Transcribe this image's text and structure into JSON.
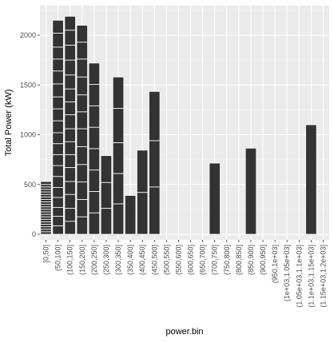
{
  "chart_data": {
    "type": "bar",
    "xlabel": "power.bin",
    "ylabel": "Total Power (kW)",
    "ylim": [
      0,
      2250
    ],
    "yticks": [
      0,
      500,
      1000,
      1500,
      2000
    ],
    "grid": true,
    "colors": {
      "panel": "#ebebeb",
      "grid_major": "#ffffff",
      "grid_minor": "#f5f5f5",
      "bar_fill": "#333333",
      "bar_segment_line": "#ffffff",
      "tick_text": "#4d4d4d"
    },
    "categories": [
      "[0,50]",
      "(50,100]",
      "(100,150]",
      "(150,200]",
      "(200,250]",
      "(250,300]",
      "(300,350]",
      "(350,400]",
      "(400,450]",
      "(450,500]",
      "(500,550]",
      "(550,600]",
      "(600,650]",
      "(650,700]",
      "(700,750]",
      "(750,800]",
      "(800,850]",
      "(850,900]",
      "(900,950]",
      "(950,1e+03]",
      "(1e+03,1.05e+03]",
      "(1.05e+03,1.1e+03]",
      "(1.1e+03,1.15e+03]",
      "(1.15e+03,1.2e+03]"
    ],
    "values": [
      530,
      2150,
      2190,
      2100,
      1720,
      790,
      1580,
      390,
      845,
      1435,
      0,
      0,
      0,
      0,
      715,
      0,
      0,
      865,
      0,
      0,
      0,
      0,
      1100,
      0
    ],
    "stack_segments": [
      [
        25,
        50,
        75,
        100,
        125,
        150,
        175,
        200,
        225,
        250,
        275,
        300,
        325,
        350,
        375,
        400,
        425,
        450,
        475,
        500
      ],
      [
        85,
        180,
        270,
        370,
        470,
        580,
        690,
        800,
        910,
        1020,
        1140,
        1260,
        1380,
        1510,
        1640,
        1760,
        1880,
        2020
      ],
      [
        130,
        260,
        400,
        530,
        670,
        800,
        930,
        1060,
        1200,
        1330,
        1460,
        1600,
        1750,
        1900,
        2050
      ],
      [
        175,
        350,
        525,
        700,
        880,
        1060,
        1230,
        1400,
        1580,
        1760,
        1930
      ],
      [
        215,
        430,
        645,
        860,
        1075,
        1290,
        1505
      ],
      [
        260,
        520
      ],
      [
        305,
        610,
        920,
        1265
      ],
      [],
      [
        420
      ],
      [
        475,
        940
      ],
      [],
      [],
      [],
      [],
      [],
      [],
      [],
      [],
      [],
      [],
      [],
      [],
      [],
      []
    ]
  }
}
